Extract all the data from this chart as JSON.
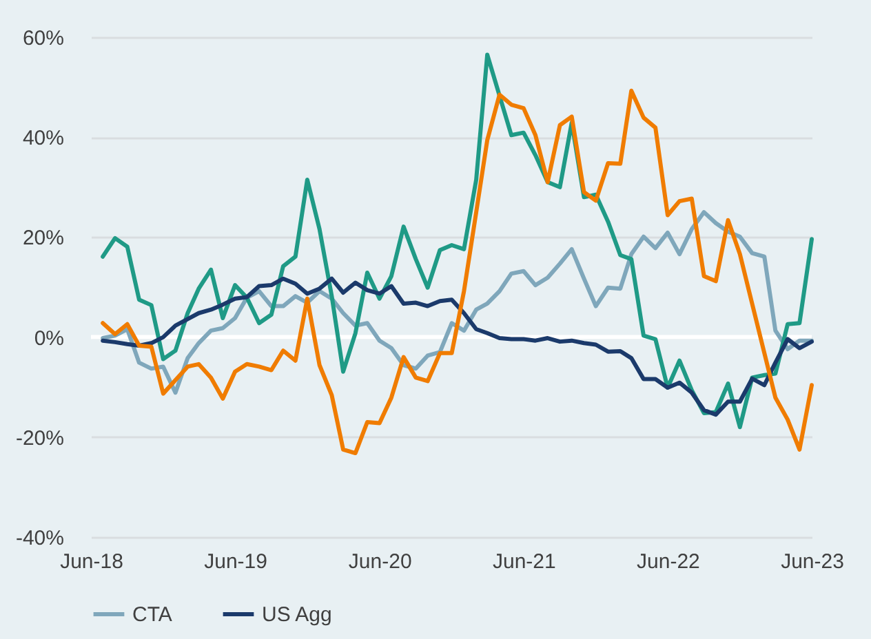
{
  "chart_data": {
    "type": "line",
    "x": [
      "2018-07",
      "2018-08",
      "2018-09",
      "2018-10",
      "2018-11",
      "2018-12",
      "2019-01",
      "2019-02",
      "2019-03",
      "2019-04",
      "2019-05",
      "2019-06",
      "2019-07",
      "2019-08",
      "2019-09",
      "2019-10",
      "2019-11",
      "2019-12",
      "2020-01",
      "2020-02",
      "2020-03",
      "2020-04",
      "2020-05",
      "2020-06",
      "2020-07",
      "2020-08",
      "2020-09",
      "2020-10",
      "2020-11",
      "2020-12",
      "2021-01",
      "2021-02",
      "2021-03",
      "2021-04",
      "2021-05",
      "2021-06",
      "2021-07",
      "2021-08",
      "2021-09",
      "2021-10",
      "2021-11",
      "2021-12",
      "2022-01",
      "2022-02",
      "2022-03",
      "2022-04",
      "2022-05",
      "2022-06",
      "2022-07",
      "2022-08",
      "2022-09",
      "2022-10",
      "2022-11",
      "2022-12",
      "2023-01",
      "2023-02",
      "2023-03",
      "2023-04",
      "2023-05",
      "2023-06"
    ],
    "series": [
      {
        "name": "CTA",
        "color": "#7fa7bb",
        "values": [
          -0.2,
          0.3,
          1.6,
          -5.1,
          -6.3,
          -5.9,
          -11.1,
          -4.2,
          -1.2,
          1.3,
          1.8,
          3.8,
          7.9,
          9.2,
          6.2,
          6.2,
          8.2,
          6.9,
          9.2,
          7.7,
          4.8,
          2.3,
          2.8,
          -0.7,
          -2.2,
          -5.6,
          -6.3,
          -3.7,
          -3.0,
          2.8,
          1.3,
          5.5,
          6.7,
          9.2,
          12.7,
          13.2,
          10.4,
          11.9,
          14.7,
          17.6,
          11.7,
          6.2,
          9.9,
          9.7,
          16.6,
          20.1,
          17.8,
          20.9,
          16.6,
          21.6,
          25.0,
          22.8,
          21.1,
          20.1,
          16.8,
          16.1,
          1.3,
          -2.4,
          -0.7,
          -0.7
        ]
      },
      {
        "color": "#1f9a86",
        "values": [
          16.1,
          19.8,
          18.1,
          7.5,
          6.4,
          -4.4,
          -2.7,
          4.8,
          9.7,
          13.5,
          3.8,
          10.4,
          7.9,
          2.8,
          4.5,
          14.2,
          16.1,
          31.5,
          21.6,
          8.2,
          -6.9,
          0.8,
          12.9,
          7.7,
          12.2,
          22.1,
          15.6,
          9.9,
          17.4,
          18.4,
          17.6,
          31.5,
          56.5,
          48.3,
          40.4,
          40.9,
          36.4,
          31.0,
          30.0,
          42.9,
          28.0,
          28.5,
          23.1,
          16.4,
          15.6,
          0.3,
          -0.4,
          -10.1,
          -4.7,
          -10.6,
          -15.2,
          -15.0,
          -9.3,
          -18.0,
          -8.1,
          -7.6,
          -7.3,
          2.6,
          2.8,
          19.6
        ]
      },
      {
        "name": "US Agg",
        "color": "#1b3a6b",
        "values": [
          -0.7,
          -1.0,
          -1.4,
          -1.7,
          -1.2,
          0,
          2.3,
          3.6,
          4.8,
          5.5,
          6.5,
          7.7,
          8.0,
          10.2,
          10.4,
          11.7,
          10.7,
          8.7,
          9.7,
          11.7,
          8.9,
          10.9,
          9.4,
          8.7,
          10.2,
          6.7,
          6.9,
          6.2,
          7.2,
          7.5,
          4.8,
          1.6,
          0.8,
          -0.2,
          -0.4,
          -0.4,
          -0.7,
          -0.2,
          -0.9,
          -0.7,
          -1.2,
          -1.5,
          -2.9,
          -2.8,
          -4.2,
          -8.4,
          -8.4,
          -10.1,
          -9.1,
          -11.1,
          -14.6,
          -15.5,
          -12.9,
          -12.9,
          -8.3,
          -9.6,
          -5.1,
          -0.4,
          -2.2,
          -0.9
        ]
      },
      {
        "color": "#f07c00",
        "values": [
          2.8,
          0.6,
          2.6,
          -1.7,
          -1.9,
          -11.3,
          -8.6,
          -5.9,
          -5.4,
          -8.1,
          -12.3,
          -6.9,
          -5.4,
          -5.9,
          -6.6,
          -2.7,
          -4.7,
          7.7,
          -5.6,
          -11.6,
          -22.5,
          -23.2,
          -17.0,
          -17.2,
          -12.1,
          -4.0,
          -8.1,
          -8.8,
          -3.2,
          -3.2,
          9.2,
          25.0,
          39.4,
          48.5,
          46.5,
          45.8,
          40.4,
          31.0,
          42.4,
          44.1,
          29.0,
          27.3,
          34.8,
          34.7,
          49.3,
          43.9,
          41.9,
          24.4,
          27.2,
          27.7,
          12.2,
          11.2,
          23.4,
          16.6,
          6.7,
          -3.2,
          -12.1,
          -16.5,
          -22.5,
          -9.6
        ]
      }
    ],
    "xlim": [
      "2018-06",
      "2023-06"
    ],
    "xticks": [
      {
        "value": "2018-06",
        "label": "Jun-18"
      },
      {
        "value": "2019-06",
        "label": "Jun-19"
      },
      {
        "value": "2020-06",
        "label": "Jun-20"
      },
      {
        "value": "2021-06",
        "label": "Jun-21"
      },
      {
        "value": "2022-06",
        "label": "Jun-22"
      },
      {
        "value": "2023-06",
        "label": "Jun-23"
      }
    ],
    "ylim": [
      -40,
      60
    ],
    "yticks": [
      {
        "value": -40,
        "label": "-40%"
      },
      {
        "value": -20,
        "label": "-20%"
      },
      {
        "value": 0,
        "label": "0%"
      },
      {
        "value": 20,
        "label": "20%"
      },
      {
        "value": 40,
        "label": "40%"
      },
      {
        "value": 60,
        "label": "60%"
      }
    ],
    "ref_lines": [
      {
        "axis": "y",
        "value": 0,
        "color": "#ffffff"
      }
    ],
    "grid": "y",
    "legend": "bottom",
    "marker": "none",
    "line_style": "solid"
  }
}
